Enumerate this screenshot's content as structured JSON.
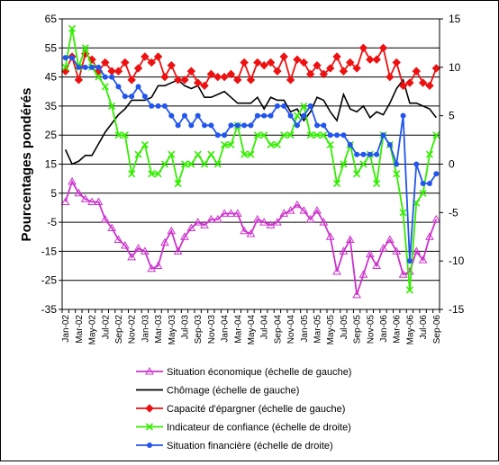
{
  "chart_data": {
    "type": "line",
    "title": "",
    "ylabel": "Pourcentages pondérés",
    "ylabel_right": "",
    "ylim": [
      -35,
      65
    ],
    "ylim_right": [
      -15,
      15
    ],
    "left_ticks": [
      "65",
      "55",
      "45",
      "35",
      "25",
      "15",
      "5",
      "-5",
      "-15",
      "-25",
      "-35"
    ],
    "right_ticks": [
      "15",
      "10",
      "5",
      "0",
      "-5",
      "-10",
      "-15"
    ],
    "grid": "horizontal major gridlines (left axis)",
    "legend_position": "bottom",
    "x": [
      "Jan-02",
      "Feb-02",
      "Mar-02",
      "Apr-02",
      "May-02",
      "Jun-02",
      "Jul-02",
      "Aug-02",
      "Sep-02",
      "Oct-02",
      "Nov-02",
      "Dec-02",
      "Jan-03",
      "Feb-03",
      "Mar-03",
      "Apr-03",
      "May-03",
      "Jun-03",
      "Jul-03",
      "Aug-03",
      "Sep-03",
      "Oct-03",
      "Nov-03",
      "Dec-03",
      "Jan-04",
      "Feb-04",
      "Mar-04",
      "Apr-04",
      "May-04",
      "Jun-04",
      "Jul-04",
      "Aug-04",
      "Sep-04",
      "Oct-04",
      "Nov-04",
      "Dec-04",
      "Jan-05",
      "Feb-05",
      "Mar-05",
      "Apr-05",
      "May-05",
      "Jun-05",
      "Jul-05",
      "Aug-05",
      "Sep-05",
      "Oct-05",
      "Nov-05",
      "Dec-05",
      "Jan-06",
      "Feb-06",
      "Mar-06",
      "Apr-06",
      "May-06",
      "Jun-06",
      "Jul-06",
      "Aug-06",
      "Sep-06"
    ],
    "x_tick_labels": [
      "Jan-02",
      "Mar-02",
      "May-02",
      "Jul-02",
      "Sep-02",
      "Nov-02",
      "Jan-03",
      "Mar-03",
      "May-03",
      "Jul-03",
      "Sep-03",
      "Nov-03",
      "Jan-04",
      "Mar-04",
      "May-04",
      "Jul-04",
      "Sep-04",
      "Nov-04",
      "Jan-05",
      "Mar-05",
      "May-05",
      "Jul-05",
      "Sep-05",
      "Nov-05",
      "Jan-06",
      "Mar-06",
      "May-06",
      "Jul-06",
      "Sep-06"
    ],
    "series": [
      {
        "name": "Situation économique (échelle de gauche)",
        "axis": "left",
        "color": "#cc33cc",
        "marker": "triangle",
        "values": [
          2,
          9,
          5,
          3,
          2,
          2,
          -4,
          -7,
          -11,
          -13,
          -17,
          -14,
          -15,
          -21,
          -20,
          -12,
          -8,
          -15,
          -10,
          -7,
          -5,
          -6,
          -4,
          -4,
          -2,
          -2,
          -2,
          -8,
          -9,
          -4,
          -5,
          -6,
          -5,
          -2,
          -1,
          1,
          -1,
          -4,
          -1,
          -5,
          -10,
          -22,
          -15,
          -11,
          -30,
          -23,
          -16,
          -20,
          -14,
          -11,
          -15,
          -23,
          -22,
          -15,
          -18,
          -10,
          -4
        ]
      },
      {
        "name": "Chômage (échelle de gauche)",
        "axis": "left",
        "color": "#000000",
        "marker": "none",
        "values": [
          20,
          15,
          16,
          18,
          18,
          22,
          26,
          29,
          32,
          34,
          37,
          37,
          37,
          38,
          42,
          42,
          43,
          44,
          42,
          41,
          42,
          38,
          38,
          39,
          40,
          38,
          36,
          36,
          36,
          38,
          34,
          38,
          37,
          37,
          33,
          34,
          30,
          33,
          38,
          37,
          33,
          30,
          39,
          34,
          33,
          35,
          31,
          33,
          32,
          36,
          41,
          44,
          36,
          36,
          35,
          34,
          31
        ]
      },
      {
        "name": "Capacité d'épargner (échelle de gauche)",
        "axis": "left",
        "color": "#ee1111",
        "marker": "diamond",
        "values": [
          47,
          52,
          44,
          53,
          51,
          47,
          50,
          47,
          47,
          50,
          44,
          48,
          52,
          50,
          52,
          45,
          49,
          44,
          44,
          47,
          43,
          42,
          46,
          45,
          45,
          46,
          44,
          50,
          44,
          50,
          49,
          50,
          47,
          52,
          44,
          51,
          50,
          46,
          49,
          46,
          48,
          52,
          47,
          50,
          48,
          55,
          51,
          51,
          55,
          45,
          50,
          42,
          43,
          47,
          43,
          42,
          48
        ]
      },
      {
        "name": "Indicateur de confiance (échelle de droite)",
        "axis": "right",
        "color": "#33ee00",
        "marker": "x",
        "values": [
          10,
          14,
          10,
          12,
          10,
          9,
          8,
          6,
          3,
          3,
          -1,
          1,
          2,
          -1,
          -1,
          0,
          1,
          -2,
          0,
          0,
          1,
          0,
          1,
          0,
          2,
          2,
          4,
          1,
          1,
          3,
          3,
          2,
          2,
          3,
          3,
          5,
          6,
          3,
          3,
          3,
          2,
          -2,
          0,
          2,
          -1,
          0,
          1,
          -2,
          3,
          2,
          -1,
          -5,
          -13,
          -4,
          -3,
          1,
          3
        ]
      },
      {
        "name": "Situation financière (échelle de droite)",
        "axis": "right",
        "color": "#2255ee",
        "marker": "circle",
        "values": [
          11,
          11,
          10,
          10,
          10,
          10,
          9,
          9,
          8,
          7,
          7,
          8,
          7,
          6,
          6,
          6,
          5,
          4,
          5,
          4,
          5,
          4,
          4,
          3,
          3,
          4,
          4,
          4,
          4,
          5,
          5,
          5,
          6,
          6,
          5,
          4,
          5,
          6,
          4,
          4,
          3,
          3,
          3,
          2,
          1,
          1,
          1,
          1,
          3,
          2,
          0,
          5,
          -10,
          0,
          -2,
          -2,
          -1
        ]
      }
    ]
  }
}
